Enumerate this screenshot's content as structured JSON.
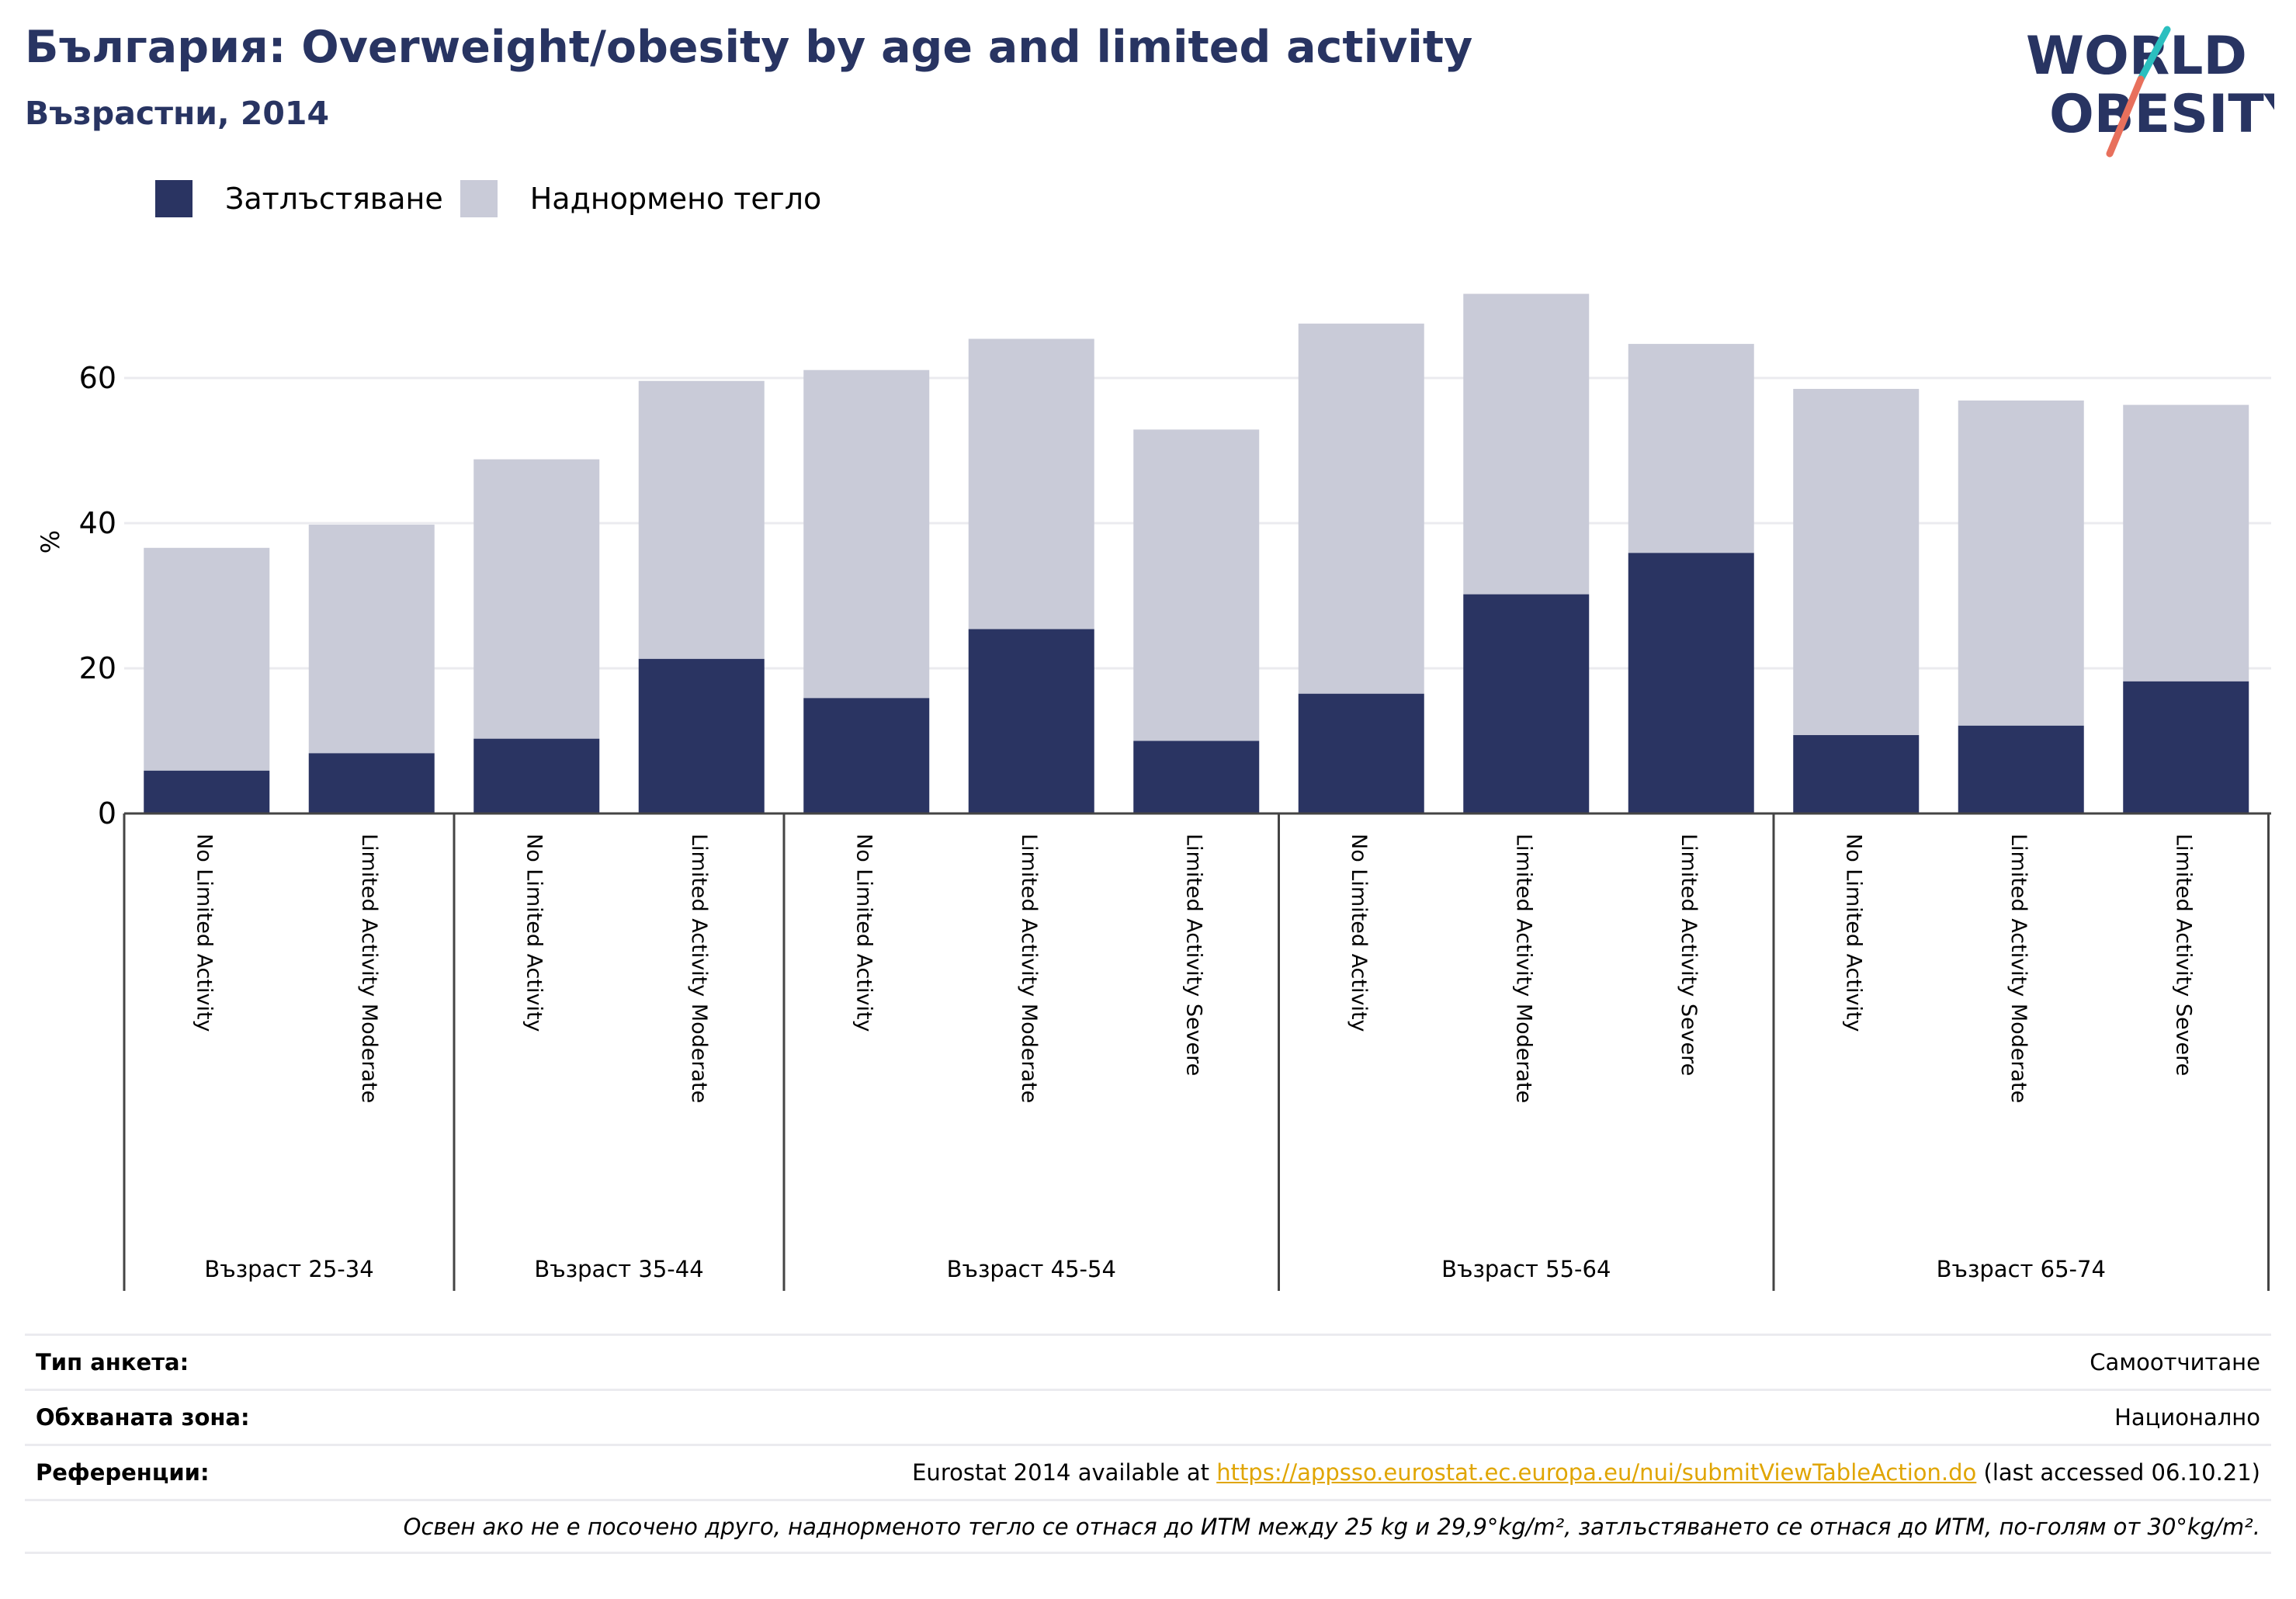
{
  "header": {
    "title": "България: Overweight/obesity by age and limited activity",
    "subtitle": "Възрастни, 2014"
  },
  "logo": {
    "line1": "WORLD",
    "line2": "OBESITY",
    "colors": {
      "text": "#283462",
      "slash_teal": "#2bbfbf",
      "slash_coral": "#e8705c"
    }
  },
  "legend": [
    {
      "label": "Затлъстяване",
      "color": "#2a3462"
    },
    {
      "label": "Наднормено тегло",
      "color": "#c9cbd8"
    }
  ],
  "chart_data": {
    "type": "bar",
    "stacked": true,
    "ylabel": "%",
    "ylim": [
      0,
      72
    ],
    "yticks": [
      0,
      20,
      40,
      60
    ],
    "grid": true,
    "legend_position": "top-left",
    "colors": {
      "obesity": "#2a3462",
      "overweight": "#c9cbd8",
      "grid": "#ebebef",
      "axis": "#444444"
    },
    "groups": [
      {
        "label": "Възраст 25-34",
        "bars": [
          {
            "category": "No Limited Activity",
            "obesity": 5.9,
            "total": 36.6
          },
          {
            "category": "Limited Activity Moderate",
            "obesity": 8.3,
            "total": 39.8
          }
        ]
      },
      {
        "label": "Възраст 35-44",
        "bars": [
          {
            "category": "No Limited Activity",
            "obesity": 10.3,
            "total": 48.8
          },
          {
            "category": "Limited Activity Moderate",
            "obesity": 21.3,
            "total": 59.6
          }
        ]
      },
      {
        "label": "Възраст 45-54",
        "bars": [
          {
            "category": "No Limited Activity",
            "obesity": 15.9,
            "total": 61.1
          },
          {
            "category": "Limited Activity Moderate",
            "obesity": 25.4,
            "total": 65.4
          },
          {
            "category": "Limited Activity Severe",
            "obesity": 10.0,
            "total": 52.9
          }
        ]
      },
      {
        "label": "Възраст 55-64",
        "bars": [
          {
            "category": "No Limited Activity",
            "obesity": 16.5,
            "total": 67.5
          },
          {
            "category": "Limited Activity Moderate",
            "obesity": 30.2,
            "total": 71.6
          },
          {
            "category": "Limited Activity Severe",
            "obesity": 35.9,
            "total": 64.7
          }
        ]
      },
      {
        "label": "Възраст 65-74",
        "bars": [
          {
            "category": "No Limited Activity",
            "obesity": 10.8,
            "total": 58.5
          },
          {
            "category": "Limited Activity Moderate",
            "obesity": 12.1,
            "total": 56.9
          },
          {
            "category": "Limited Activity Severe",
            "obesity": 18.2,
            "total": 56.3
          }
        ]
      }
    ]
  },
  "info": {
    "survey_label": "Тип анкета:",
    "survey_value": "Самоотчитане",
    "coverage_label": "Обхваната зона:",
    "coverage_value": "Национално",
    "references_label": "Референции:",
    "references_prefix": "Eurostat 2014 available at ",
    "references_link": "https://appsso.eurostat.ec.europa.eu/nui/submitViewTableAction.do",
    "references_suffix": " (last accessed 06.10.21)",
    "note": "Освен ако не е посочено друго, наднорменото тегло се отнася до ИТМ между 25 kg и 29,9°kg/m², затлъстяването се отнася до ИТМ, по-голям от 30°kg/m²."
  }
}
